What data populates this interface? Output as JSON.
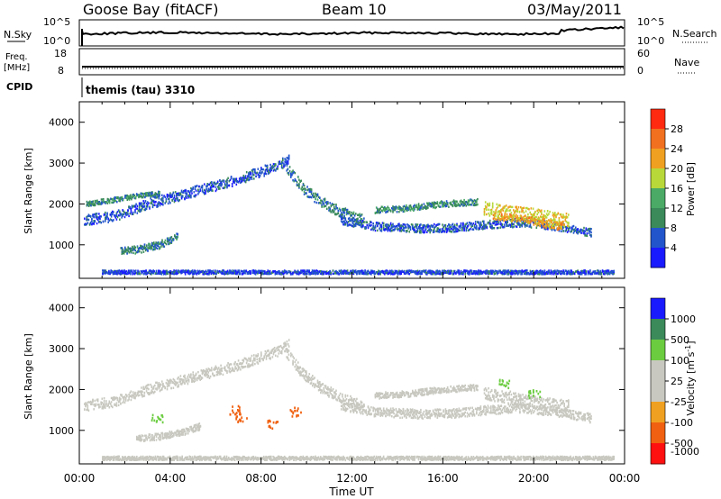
{
  "header": {
    "station": "Goose Bay (fitACF)",
    "beam": "Beam 10",
    "date": "03/May/2011"
  },
  "nsky_panel": {
    "left_label": "N.Sky",
    "left_ticks": [
      "10^5",
      "10^0"
    ],
    "right_label": "N.Search",
    "right_ticks": [
      "10^5",
      "10^0"
    ]
  },
  "freq_panel": {
    "left_label_1": "Freq.",
    "left_label_2": "[MHz]",
    "left_ticks": [
      "18",
      "8"
    ],
    "right_label": "Nave",
    "right_ticks": [
      "60",
      "0"
    ]
  },
  "cpid_panel": {
    "label": "CPID",
    "text": "themis (tau) 3310"
  },
  "colors": {
    "power": [
      "#1a1aff",
      "#2255cc",
      "#3a8a5a",
      "#4aaa66",
      "#b8d83a",
      "#f0a020",
      "#f07020",
      "#ff2a10"
    ],
    "velocity": [
      "#ff1010",
      "#f06010",
      "#f0a020",
      "#c8c8c0",
      "#c8c8c0",
      "#6bcc40",
      "#3a8a5a",
      "#1a1aff"
    ]
  },
  "chart_data": [
    {
      "type": "heatmap",
      "name_key": "power_panel",
      "ylabel": "Slant Range [km]",
      "xlabel": "",
      "x_ticks": [
        "00:00",
        "04:00",
        "08:00",
        "12:00",
        "16:00",
        "20:00",
        "00:00"
      ],
      "y_ticks": [
        1000,
        2000,
        3000,
        4000
      ],
      "ylim": [
        180,
        4500
      ],
      "xlim_hours": [
        0,
        24
      ],
      "colorbar": {
        "label": "Power [dB]",
        "ticks": [
          "28",
          "24",
          "20",
          "16",
          "12",
          "8",
          "4"
        ]
      },
      "bands": [
        {
          "t": [
            0.2,
            1.5,
            3,
            5,
            7,
            8.8,
            9.2
          ],
          "r": [
            1600,
            1700,
            2000,
            2300,
            2600,
            2950,
            3100
          ],
          "w": 250,
          "value": 6
        },
        {
          "t": [
            0.3,
            1.5,
            2.5,
            3.5
          ],
          "r": [
            2000,
            2100,
            2200,
            2250
          ],
          "w": 120,
          "value": 10
        },
        {
          "t": [
            9.1,
            9.8,
            10.6,
            11.5,
            12.5
          ],
          "r": [
            2900,
            2400,
            2050,
            1800,
            1600
          ],
          "w": 260,
          "value": 9
        },
        {
          "t": [
            11.5,
            13,
            15,
            16.5,
            18,
            19.5,
            21,
            22.5
          ],
          "r": [
            1600,
            1450,
            1400,
            1420,
            1500,
            1550,
            1450,
            1300
          ],
          "w": 200,
          "value": 6
        },
        {
          "t": [
            13,
            14.5,
            16,
            17.5
          ],
          "r": [
            1850,
            1900,
            2000,
            2050
          ],
          "w": 150,
          "value": 10
        },
        {
          "t": [
            17.8,
            18.8,
            19.8,
            20.8,
            21.5
          ],
          "r": [
            1900,
            1800,
            1750,
            1650,
            1600
          ],
          "w": 330,
          "value": 20
        },
        {
          "t": [
            18.2,
            19.5,
            20.5,
            21.2
          ],
          "r": [
            1700,
            1650,
            1500,
            1450
          ],
          "w": 180,
          "value": 22
        },
        {
          "t": [
            1.8,
            2.5,
            3.5,
            4.3
          ],
          "r": [
            850,
            880,
            1000,
            1200
          ],
          "w": 180,
          "value": 9
        },
        {
          "t": [
            1,
            4,
            8,
            12,
            16,
            20,
            23.5
          ],
          "r": [
            330,
            330,
            330,
            330,
            330,
            330,
            330
          ],
          "w": 90,
          "value": 5
        }
      ]
    },
    {
      "type": "heatmap",
      "name_key": "velocity_panel",
      "ylabel": "Slant Range [km]",
      "xlabel": "Time UT",
      "x_ticks": [
        "00:00",
        "04:00",
        "08:00",
        "12:00",
        "16:00",
        "20:00",
        "00:00"
      ],
      "y_ticks": [
        1000,
        2000,
        3000,
        4000
      ],
      "ylim": [
        180,
        4500
      ],
      "xlim_hours": [
        0,
        24
      ],
      "colorbar": {
        "label": "Velocity [m s^-1]",
        "ticks": [
          "1000",
          "500",
          "100",
          "25",
          "-25",
          "-100",
          "-500",
          "-1000"
        ]
      },
      "bands": [
        {
          "t": [
            0.2,
            1.5,
            3,
            5,
            7,
            8.8,
            9.2
          ],
          "r": [
            1600,
            1700,
            2000,
            2300,
            2600,
            2950,
            3100
          ],
          "w": 250,
          "value": 0
        },
        {
          "t": [
            9.1,
            9.8,
            10.6,
            11.5,
            12.5
          ],
          "r": [
            2900,
            2400,
            2050,
            1800,
            1600
          ],
          "w": 260,
          "value": 0
        },
        {
          "t": [
            11.5,
            13,
            15,
            16.5,
            18,
            19.5,
            21,
            22.5
          ],
          "r": [
            1600,
            1450,
            1400,
            1420,
            1500,
            1550,
            1450,
            1300
          ],
          "w": 220,
          "value": 0
        },
        {
          "t": [
            13,
            14.5,
            16,
            17.5
          ],
          "r": [
            1850,
            1900,
            2000,
            2050
          ],
          "w": 150,
          "value": 0
        },
        {
          "t": [
            17.8,
            19,
            20.5,
            21.5
          ],
          "r": [
            1900,
            1800,
            1650,
            1600
          ],
          "w": 300,
          "value": 0
        },
        {
          "t": [
            2.5,
            3.5,
            4.5,
            5.3
          ],
          "r": [
            800,
            850,
            950,
            1100
          ],
          "w": 160,
          "value": 0
        },
        {
          "t": [
            1,
            4,
            8,
            12,
            16,
            20,
            23.5
          ],
          "r": [
            320,
            320,
            320,
            320,
            320,
            320,
            320
          ],
          "w": 90,
          "value": 0
        }
      ],
      "accents": [
        {
          "t": 3.4,
          "r": 1300,
          "value": 120
        },
        {
          "t": 6.8,
          "r": 1500,
          "value": -200
        },
        {
          "t": 7.1,
          "r": 1300,
          "value": -150
        },
        {
          "t": 8.5,
          "r": 1150,
          "value": -300
        },
        {
          "t": 18.7,
          "r": 2150,
          "value": 150
        },
        {
          "t": 20.0,
          "r": 1900,
          "value": 110
        },
        {
          "t": 9.5,
          "r": 1450,
          "value": -120
        }
      ]
    }
  ],
  "axis_labels": {
    "ylabel_top": "Slant Range [km]",
    "ylabel_bottom": "Slant Range [km]",
    "xlabel": "Time UT",
    "x_ticks": [
      "00:00",
      "04:00",
      "08:00",
      "12:00",
      "16:00",
      "20:00",
      "00:00"
    ],
    "y_ticks": [
      "1000",
      "2000",
      "3000",
      "4000"
    ],
    "power_label": "Power [dB]",
    "velocity_label": "Velocity [m s",
    "velocity_unit_tail": "]"
  }
}
